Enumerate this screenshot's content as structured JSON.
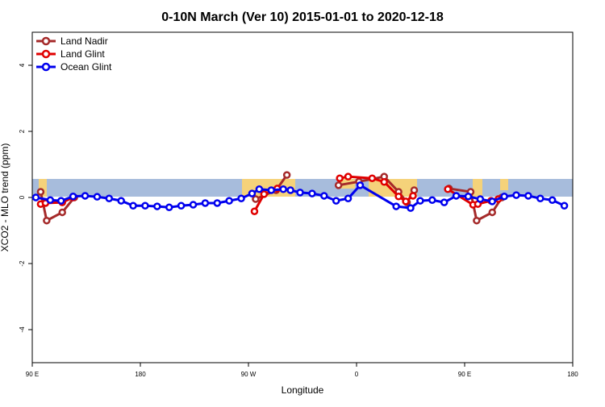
{
  "chart_data": {
    "type": "line",
    "title": "0-10N March (Ver 10)   2015-01-01 to 2020-12-18",
    "xlabel": "Longitude",
    "ylabel": "XCO2 - MLO trend (ppm)",
    "xlim": [
      90,
      540
    ],
    "ylim": [
      -5,
      5
    ],
    "xticks": [
      {
        "value": 90,
        "label": "90 E"
      },
      {
        "value": 180,
        "label": "180"
      },
      {
        "value": 270,
        "label": "90 W"
      },
      {
        "value": 360,
        "label": "0"
      },
      {
        "value": 450,
        "label": "90 E"
      },
      {
        "value": 540,
        "label": "180"
      }
    ],
    "yticks": [
      -4,
      -2,
      0,
      2,
      4
    ],
    "legend": "top-left",
    "series": [
      {
        "name": "Land Nadir",
        "color": "#a52a2a",
        "x": [
          97,
          102,
          115,
          125,
          null,
          276,
          293,
          302,
          null,
          345,
          362,
          383,
          395,
          402,
          408,
          null,
          437,
          455,
          460,
          473,
          481
        ],
        "values": [
          0.17,
          -0.7,
          -0.45,
          0,
          null,
          -0.05,
          0.22,
          0.68,
          null,
          0.37,
          0.48,
          0.63,
          0.17,
          -0.15,
          0.22,
          null,
          0.27,
          0.17,
          -0.7,
          -0.45,
          0
        ]
      },
      {
        "name": "Land Glint",
        "color": "#e00000",
        "x": [
          97,
          101,
          115,
          124,
          null,
          275,
          283,
          294,
          null,
          346,
          353,
          373,
          383,
          395,
          401,
          407,
          null,
          436,
          457,
          461,
          472,
          478
        ],
        "values": [
          -0.2,
          -0.17,
          -0.15,
          0,
          null,
          -0.42,
          0.1,
          0.27,
          null,
          0.58,
          0.63,
          0.58,
          0.47,
          0.03,
          -0.12,
          0.05,
          null,
          0.25,
          -0.22,
          -0.2,
          -0.1,
          -0.05
        ]
      },
      {
        "name": "Ocean Glint",
        "color": "#0000ee",
        "x": [
          93,
          105,
          114,
          124,
          134,
          144,
          154,
          164,
          174,
          184,
          194,
          204,
          214,
          224,
          234,
          244,
          254,
          264,
          273,
          279,
          289,
          299,
          305,
          313,
          323,
          333,
          343,
          353,
          363,
          393,
          405,
          413,
          423,
          433,
          443,
          453,
          463,
          473,
          483,
          493,
          503,
          513,
          523,
          533
        ],
        "values": [
          0,
          -0.08,
          -0.1,
          0.03,
          0.05,
          0.02,
          -0.03,
          -0.1,
          -0.25,
          -0.25,
          -0.27,
          -0.3,
          -0.25,
          -0.22,
          -0.17,
          -0.17,
          -0.1,
          -0.03,
          0.12,
          0.25,
          0.22,
          0.25,
          0.22,
          0.15,
          0.12,
          0.05,
          -0.1,
          -0.03,
          0.37,
          -0.27,
          -0.32,
          -0.1,
          -0.08,
          -0.15,
          0.05,
          0.03,
          -0.05,
          -0.12,
          0.03,
          0.07,
          0.05,
          -0.03,
          -0.08,
          -0.25
        ]
      }
    ]
  }
}
